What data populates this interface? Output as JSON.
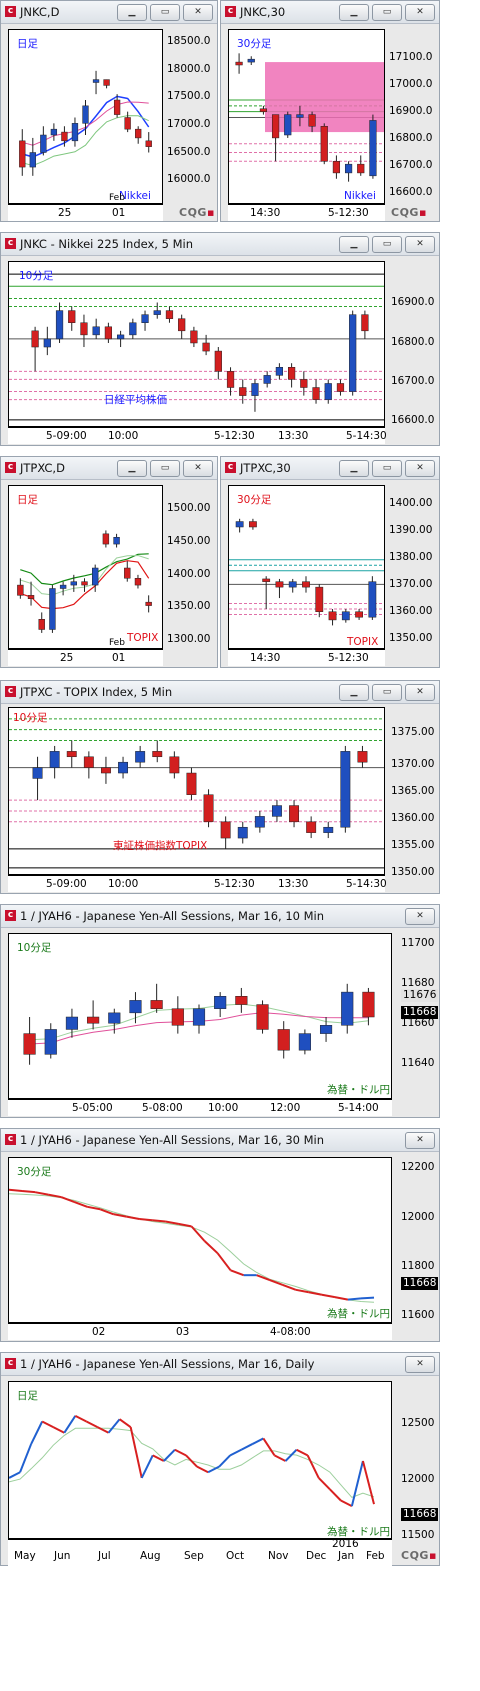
{
  "windows": [
    {
      "id": "w1",
      "title": "JNKC,D",
      "tf": "日足",
      "tf_color": "blue",
      "name_label": "Nikkei",
      "name_color": "blue",
      "yticks": [
        "18500.0",
        "18000.0",
        "17500.0",
        "17000.0",
        "16500.0",
        "16000.0"
      ],
      "xticks": [
        "25",
        "Feb\n01"
      ],
      "x2": "Feb",
      "x3": "01"
    },
    {
      "id": "w2",
      "title": "JNKC,30",
      "tf": "30分足",
      "tf_color": "blue",
      "name_label": "Nikkei",
      "name_color": "blue",
      "yticks": [
        "17100.0",
        "17000.0",
        "16900.0",
        "16800.0",
        "16700.0",
        "16600.0"
      ],
      "xticks": [
        "14:30",
        "5-12:30"
      ]
    },
    {
      "id": "w3",
      "title": "JNKC - Nikkei 225 Index, 5 Min",
      "tf": "10分足",
      "tf_color": "blue",
      "name_label": "日経平均株価",
      "name_color": "blue",
      "yticks": [
        "16900.0",
        "16800.0",
        "16700.0",
        "16600.0"
      ],
      "xticks": [
        "5-09:00",
        "10:00",
        "5-12:30",
        "13:30",
        "5-14:30"
      ]
    },
    {
      "id": "w4",
      "title": "JTPXC,D",
      "tf": "日足",
      "tf_color": "red",
      "name_label": "TOPIX",
      "name_color": "red",
      "yticks": [
        "1500.00",
        "1450.00",
        "1400.00",
        "1350.00",
        "1300.00"
      ],
      "xticks": [
        "25",
        "01"
      ],
      "x2": "Feb"
    },
    {
      "id": "w5",
      "title": "JTPXC,30",
      "tf": "30分足",
      "tf_color": "red",
      "name_label": "TOPIX",
      "name_color": "red",
      "yticks": [
        "1400.00",
        "1390.00",
        "1380.00",
        "1370.00",
        "1360.00",
        "1350.00"
      ],
      "xticks": [
        "14:30",
        "5-12:30"
      ]
    },
    {
      "id": "w6",
      "title": "JTPXC - TOPIX Index, 5 Min",
      "tf": "10分足",
      "tf_color": "red",
      "name_label": "東証株価指数TOPIX",
      "name_color": "red",
      "yticks": [
        "1375.00",
        "1370.00",
        "1365.00",
        "1360.00",
        "1355.00",
        "1350.00"
      ],
      "xticks": [
        "5-09:00",
        "10:00",
        "5-12:30",
        "13:30",
        "5-14:30"
      ]
    },
    {
      "id": "w7",
      "title": "1 / JYAH6 - Japanese Yen-All Sessions, Mar 16, 10 Min",
      "tf": "10分足",
      "tf_color": "green",
      "name_label": "為替・ドル円",
      "name_color": "green",
      "yticks": [
        "11700",
        "11680",
        "11660",
        "11640"
      ],
      "xticks": [
        "5-05:00",
        "5-08:00",
        "10:00",
        "12:00",
        "5-14:00"
      ],
      "price_boxes": [
        "11676",
        "11668"
      ]
    },
    {
      "id": "w8",
      "title": "1 / JYAH6 - Japanese Yen-All Sessions, Mar 16, 30 Min",
      "tf": "30分足",
      "tf_color": "green",
      "name_label": "為替・ドル円",
      "name_color": "green",
      "yticks": [
        "12200",
        "12000",
        "11800",
        "11600"
      ],
      "xticks": [
        "02",
        "03",
        "4-08:00"
      ],
      "price_boxes": [
        "11668"
      ]
    },
    {
      "id": "w9",
      "title": "1 / JYAH6 - Japanese Yen-All Sessions, Mar 16, Daily",
      "tf": "日足",
      "tf_color": "green",
      "name_label": "為替・ドル円",
      "name_color": "green",
      "yticks": [
        "12500",
        "12000",
        "11500"
      ],
      "xticks": [
        "May",
        "Jun",
        "Jul",
        "Aug",
        "Sep",
        "Oct",
        "Nov",
        "Dec",
        "Jan",
        "Feb"
      ],
      "x2": "2016",
      "price_boxes": [
        "11668"
      ]
    }
  ],
  "cqg": "CQG",
  "buttons": {
    "minimize": "▁",
    "restore": "▭",
    "close": "✕"
  },
  "chart_data": [
    {
      "type": "candlestick",
      "title": "JNKC,D",
      "ylim": [
        15800,
        18800
      ],
      "values": [
        [
          16900,
          17100,
          16300,
          16450
        ],
        [
          16450,
          16950,
          16300,
          16700
        ],
        [
          16700,
          17150,
          16650,
          17000
        ],
        [
          17000,
          17200,
          16900,
          17100
        ],
        [
          17050,
          17150,
          16800,
          16900
        ],
        [
          16900,
          17300,
          16800,
          17200
        ],
        [
          17200,
          17600,
          17000,
          17500
        ],
        [
          17900,
          18100,
          17700,
          17950
        ],
        [
          17950,
          17950,
          17800,
          17850
        ],
        [
          17600,
          17700,
          17300,
          17350
        ],
        [
          17300,
          17400,
          17050,
          17100
        ],
        [
          17100,
          17150,
          16850,
          16950
        ],
        [
          16900,
          17050,
          16700,
          16800
        ]
      ]
    },
    {
      "type": "candlestick",
      "title": "JNKC,30",
      "ylim": [
        16550,
        17150
      ],
      "values": [
        [
          17040,
          17070,
          17000,
          17030
        ],
        [
          17040,
          17060,
          17030,
          17050
        ],
        [
          16880,
          16890,
          16860,
          16870
        ],
        [
          16860,
          16860,
          16700,
          16780
        ],
        [
          16790,
          16870,
          16780,
          16860
        ],
        [
          16850,
          16890,
          16820,
          16860
        ],
        [
          16860,
          16870,
          16800,
          16820
        ],
        [
          16820,
          16830,
          16690,
          16700
        ],
        [
          16700,
          16720,
          16640,
          16660
        ],
        [
          16660,
          16700,
          16630,
          16690
        ],
        [
          16690,
          16720,
          16650,
          16660
        ],
        [
          16650,
          16860,
          16640,
          16840
        ]
      ]
    },
    {
      "type": "candlestick",
      "title": "JNKC - Nikkei 225 Index, 5 Min",
      "ylim": [
        16580,
        16990
      ],
      "values": [
        [
          16820,
          16830,
          16720,
          16780
        ],
        [
          16780,
          16830,
          16760,
          16800
        ],
        [
          16800,
          16890,
          16790,
          16870
        ],
        [
          16870,
          16880,
          16820,
          16840
        ],
        [
          16840,
          16860,
          16780,
          16810
        ],
        [
          16810,
          16850,
          16800,
          16830
        ],
        [
          16830,
          16840,
          16790,
          16800
        ],
        [
          16800,
          16820,
          16780,
          16810
        ],
        [
          16810,
          16850,
          16800,
          16840
        ],
        [
          16840,
          16870,
          16820,
          16860
        ],
        [
          16860,
          16890,
          16850,
          16870
        ],
        [
          16870,
          16880,
          16840,
          16850
        ],
        [
          16850,
          16860,
          16800,
          16820
        ],
        [
          16820,
          16830,
          16780,
          16790
        ],
        [
          16790,
          16810,
          16760,
          16770
        ],
        [
          16770,
          16780,
          16700,
          16720
        ],
        [
          16720,
          16730,
          16660,
          16680
        ],
        [
          16680,
          16700,
          16640,
          16660
        ],
        [
          16660,
          16700,
          16620,
          16690
        ],
        [
          16690,
          16720,
          16680,
          16710
        ],
        [
          16710,
          16740,
          16700,
          16730
        ],
        [
          16730,
          16740,
          16680,
          16700
        ],
        [
          16700,
          16720,
          16660,
          16680
        ],
        [
          16680,
          16700,
          16640,
          16650
        ],
        [
          16650,
          16700,
          16640,
          16690
        ],
        [
          16690,
          16700,
          16660,
          16670
        ],
        [
          16670,
          16870,
          16660,
          16860
        ],
        [
          16860,
          16870,
          16800,
          16820
        ]
      ]
    },
    {
      "type": "candlestick",
      "title": "JTPXC,D",
      "ylim": [
        1290,
        1530
      ],
      "values": [
        [
          1385,
          1395,
          1365,
          1370
        ],
        [
          1370,
          1390,
          1355,
          1365
        ],
        [
          1335,
          1345,
          1315,
          1320
        ],
        [
          1320,
          1385,
          1315,
          1380
        ],
        [
          1380,
          1390,
          1370,
          1385
        ],
        [
          1385,
          1400,
          1375,
          1390
        ],
        [
          1390,
          1395,
          1375,
          1385
        ],
        [
          1385,
          1415,
          1375,
          1410
        ],
        [
          1460,
          1465,
          1440,
          1445
        ],
        [
          1445,
          1460,
          1440,
          1455
        ],
        [
          1410,
          1420,
          1390,
          1395
        ],
        [
          1395,
          1400,
          1380,
          1385
        ],
        [
          1360,
          1370,
          1345,
          1355
        ]
      ]
    },
    {
      "type": "candlestick",
      "title": "JTPXC,30",
      "ylim": [
        1345,
        1405
      ],
      "values": [
        [
          1390,
          1393,
          1388,
          1392
        ],
        [
          1392,
          1393,
          1389,
          1390
        ],
        [
          1371,
          1372,
          1360,
          1370
        ],
        [
          1370,
          1371,
          1364,
          1368
        ],
        [
          1368,
          1371,
          1366,
          1370
        ],
        [
          1370,
          1372,
          1366,
          1368
        ],
        [
          1368,
          1369,
          1357,
          1359
        ],
        [
          1359,
          1360,
          1354,
          1356
        ],
        [
          1356,
          1360,
          1355,
          1359
        ],
        [
          1359,
          1360,
          1356,
          1357
        ],
        [
          1357,
          1372,
          1356,
          1370
        ]
      ]
    },
    {
      "type": "candlestick",
      "title": "JTPXC - TOPIX Index, 5 Min",
      "ylim": [
        1348,
        1379
      ],
      "values": [
        [
          1366,
          1370,
          1362,
          1368
        ],
        [
          1368,
          1372,
          1366,
          1371
        ],
        [
          1371,
          1373,
          1368,
          1370
        ],
        [
          1370,
          1371,
          1366,
          1368
        ],
        [
          1368,
          1370,
          1365,
          1367
        ],
        [
          1367,
          1370,
          1366,
          1369
        ],
        [
          1369,
          1372,
          1368,
          1371
        ],
        [
          1371,
          1373,
          1369,
          1370
        ],
        [
          1370,
          1371,
          1366,
          1367
        ],
        [
          1367,
          1368,
          1362,
          1363
        ],
        [
          1363,
          1364,
          1357,
          1358
        ],
        [
          1358,
          1359,
          1353,
          1355
        ],
        [
          1355,
          1358,
          1354,
          1357
        ],
        [
          1357,
          1360,
          1356,
          1359
        ],
        [
          1359,
          1362,
          1358,
          1361
        ],
        [
          1361,
          1362,
          1357,
          1358
        ],
        [
          1358,
          1359,
          1355,
          1356
        ],
        [
          1356,
          1358,
          1355,
          1357
        ],
        [
          1357,
          1372,
          1356,
          1371
        ],
        [
          1371,
          1372,
          1368,
          1369
        ]
      ]
    },
    {
      "type": "candlestick",
      "title": "1 / JYAH6 - Japanese Yen-All Sessions, Mar 16, 10 Min",
      "ylim": [
        11628,
        11708
      ],
      "values": [
        [
          11660,
          11668,
          11645,
          11650
        ],
        [
          11650,
          11665,
          11648,
          11662
        ],
        [
          11662,
          11672,
          11658,
          11668
        ],
        [
          11668,
          11676,
          11662,
          11665
        ],
        [
          11665,
          11672,
          11660,
          11670
        ],
        [
          11670,
          11680,
          11665,
          11676
        ],
        [
          11676,
          11684,
          11670,
          11672
        ],
        [
          11672,
          11678,
          11660,
          11664
        ],
        [
          11664,
          11674,
          11660,
          11672
        ],
        [
          11672,
          11680,
          11668,
          11678
        ],
        [
          11678,
          11682,
          11670,
          11674
        ],
        [
          11674,
          11676,
          11660,
          11662
        ],
        [
          11662,
          11666,
          11648,
          11652
        ],
        [
          11652,
          11662,
          11650,
          11660
        ],
        [
          11660,
          11668,
          11656,
          11664
        ],
        [
          11664,
          11684,
          11660,
          11680
        ],
        [
          11680,
          11682,
          11664,
          11668
        ]
      ]
    },
    {
      "type": "line",
      "title": "1 / JYAH6 - Japanese Yen-All Sessions, Mar 16, 30 Min",
      "ylim": [
        11560,
        12240
      ],
      "values": [
        12110,
        12105,
        12100,
        12090,
        12080,
        12060,
        12040,
        12030,
        12010,
        12000,
        11990,
        11985,
        11980,
        11970,
        11960,
        11900,
        11850,
        11780,
        11760,
        11760,
        11740,
        11720,
        11700,
        11690,
        11680,
        11670,
        11660,
        11665,
        11668
      ]
    },
    {
      "type": "line",
      "title": "1 / JYAH6 - Japanese Yen-All Sessions, Mar 16, Daily",
      "ylim": [
        11350,
        12750
      ],
      "values": [
        11900,
        11950,
        12200,
        12400,
        12350,
        12300,
        12450,
        12400,
        12350,
        12300,
        12420,
        12350,
        11900,
        12100,
        12050,
        12150,
        12100,
        12000,
        11950,
        12000,
        12100,
        12150,
        12200,
        12250,
        12100,
        12050,
        12150,
        12100,
        11900,
        11800,
        11700,
        11650,
        12050,
        11668
      ]
    }
  ]
}
